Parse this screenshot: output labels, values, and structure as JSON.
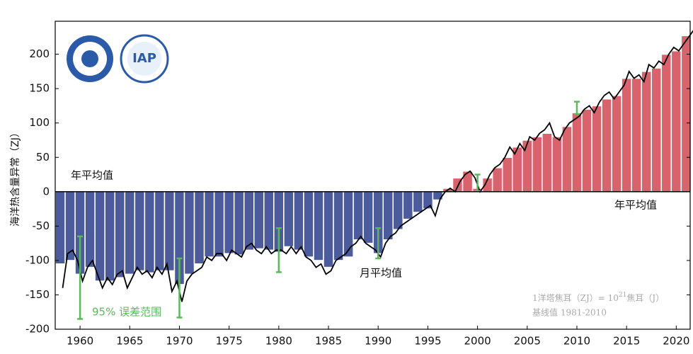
{
  "chart_data": {
    "type": "bar",
    "ylabel": "海洋热含量异常（ZJ）",
    "x": [
      1958,
      1959,
      1960,
      1961,
      1962,
      1963,
      1964,
      1965,
      1966,
      1967,
      1968,
      1969,
      1970,
      1971,
      1972,
      1973,
      1974,
      1975,
      1976,
      1977,
      1978,
      1979,
      1980,
      1981,
      1982,
      1983,
      1984,
      1985,
      1986,
      1987,
      1988,
      1989,
      1990,
      1991,
      1992,
      1993,
      1994,
      1995,
      1996,
      1997,
      1998,
      1999,
      2000,
      2001,
      2002,
      2003,
      2004,
      2005,
      2006,
      2007,
      2008,
      2009,
      2010,
      2011,
      2012,
      2013,
      2014,
      2015,
      2016,
      2017,
      2018,
      2019,
      2020,
      2021
    ],
    "series": [
      {
        "name": "年平均值",
        "type": "bar",
        "color": "#d9636c",
        "negative_color": "#4b5b9c",
        "values": [
          -105,
          -100,
          -120,
          -110,
          -130,
          -130,
          -125,
          -120,
          -115,
          -118,
          -115,
          -115,
          -135,
          -120,
          -105,
          -95,
          -95,
          -90,
          -92,
          -85,
          -83,
          -85,
          -88,
          -80,
          -85,
          -95,
          -100,
          -110,
          -100,
          -95,
          -70,
          -75,
          -90,
          -70,
          -55,
          -40,
          -30,
          -25,
          -12,
          5,
          20,
          30,
          5,
          20,
          35,
          50,
          65,
          75,
          80,
          85,
          80,
          95,
          115,
          120,
          125,
          135,
          140,
          165,
          165,
          175,
          180,
          200,
          205,
          227
        ]
      },
      {
        "name": "月平均值",
        "type": "line",
        "color": "#000000",
        "x": [
          1958.25,
          1958.75,
          1959.25,
          1959.75,
          1960.25,
          1960.75,
          1961.25,
          1961.75,
          1962.25,
          1962.75,
          1963.25,
          1963.75,
          1964.25,
          1964.75,
          1965.25,
          1965.75,
          1966.25,
          1966.75,
          1967.25,
          1967.75,
          1968.25,
          1968.75,
          1969.25,
          1969.75,
          1970.25,
          1970.75,
          1971.25,
          1971.75,
          1972.25,
          1972.75,
          1973.25,
          1973.75,
          1974.25,
          1974.75,
          1975.25,
          1975.75,
          1976.25,
          1976.75,
          1977.25,
          1977.75,
          1978.25,
          1978.75,
          1979.25,
          1979.75,
          1980.25,
          1980.75,
          1981.25,
          1981.75,
          1982.25,
          1982.75,
          1983.25,
          1983.75,
          1984.25,
          1984.75,
          1985.25,
          1985.75,
          1986.25,
          1986.75,
          1987.25,
          1987.75,
          1988.25,
          1988.75,
          1989.25,
          1989.75,
          1990.25,
          1990.75,
          1991.25,
          1991.75,
          1992.25,
          1992.75,
          1993.25,
          1993.75,
          1994.25,
          1994.75,
          1995.25,
          1995.75,
          1996.25,
          1996.75,
          1997.25,
          1997.75,
          1998.25,
          1998.75,
          1999.25,
          1999.75,
          2000.25,
          2000.75,
          2001.25,
          2001.75,
          2002.25,
          2002.75,
          2003.25,
          2003.75,
          2004.25,
          2004.75,
          2005.25,
          2005.75,
          2006.25,
          2006.75,
          2007.25,
          2007.75,
          2008.25,
          2008.75,
          2009.25,
          2009.75,
          2010.25,
          2010.75,
          2011.25,
          2011.75,
          2012.25,
          2012.75,
          2013.25,
          2013.75,
          2014.25,
          2014.75,
          2015.25,
          2015.75,
          2016.25,
          2016.75,
          2017.25,
          2017.75,
          2018.25,
          2018.75,
          2019.25,
          2019.75,
          2020.25,
          2020.75,
          2021.25,
          2021.75
        ],
        "values": [
          -140,
          -90,
          -85,
          -100,
          -130,
          -110,
          -100,
          -120,
          -140,
          -125,
          -135,
          -120,
          -115,
          -140,
          -125,
          -110,
          -120,
          -115,
          -125,
          -110,
          -120,
          -105,
          -145,
          -130,
          -160,
          -130,
          -120,
          -115,
          -110,
          -95,
          -100,
          -90,
          -90,
          -100,
          -85,
          -90,
          -95,
          -80,
          -75,
          -85,
          -90,
          -80,
          -90,
          -85,
          -85,
          -90,
          -80,
          -90,
          -80,
          -95,
          -100,
          -110,
          -105,
          -120,
          -115,
          -100,
          -95,
          -90,
          -80,
          -75,
          -65,
          -75,
          -80,
          -85,
          -95,
          -75,
          -65,
          -60,
          -50,
          -45,
          -40,
          -35,
          -30,
          -25,
          -20,
          -35,
          -10,
          0,
          5,
          0,
          15,
          25,
          30,
          20,
          0,
          10,
          25,
          35,
          40,
          50,
          65,
          55,
          70,
          60,
          80,
          75,
          85,
          90,
          100,
          80,
          75,
          90,
          100,
          105,
          110,
          120,
          125,
          115,
          130,
          140,
          145,
          135,
          145,
          155,
          175,
          165,
          170,
          160,
          185,
          180,
          190,
          185,
          200,
          210,
          205,
          215,
          225,
          235
        ]
      }
    ],
    "error_bars": {
      "label": "95% 误差范围",
      "color": "#5cb85c",
      "x": [
        1960,
        1970,
        1980,
        1990,
        2000,
        2010
      ],
      "values": [
        -125,
        -140,
        -85,
        -75,
        13,
        122
      ],
      "errors": [
        60,
        43,
        32,
        22,
        12,
        9
      ]
    },
    "xlim": [
      1957.5,
      2021.4
    ],
    "ylim": [
      -200,
      248
    ],
    "xticks": [
      1960,
      1965,
      1970,
      1975,
      1980,
      1985,
      1990,
      1995,
      2000,
      2005,
      2010,
      2015,
      2020
    ],
    "yticks": [
      -200,
      -150,
      -100,
      -50,
      0,
      50,
      100,
      150,
      200
    ],
    "note": {
      "prefix": "1洋塔焦耳（ZJ）= 10",
      "exponent": "21",
      "suffix": "焦耳（J）"
    },
    "baseline": "基线值 1981-2010",
    "logo_text": "IAP"
  }
}
